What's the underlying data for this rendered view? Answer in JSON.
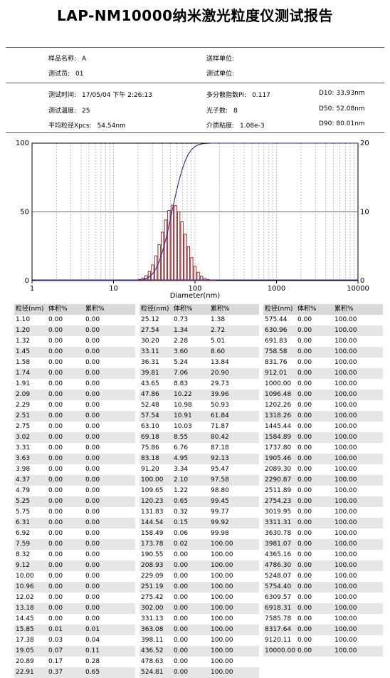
{
  "title": "LAP-NM10000纳米激光粒度仪测试报告",
  "info": {
    "sample_name_label": "样品名称:",
    "sample_name": "A",
    "tester_label": "测试员:",
    "tester": "01",
    "sender_label": "送样单位:",
    "sender": "",
    "test_unit_label": "测试单位:",
    "test_unit": "",
    "test_time_label": "测试时间:",
    "test_time": "17/05/04 下午 2:26:13",
    "pdi_label": "多分散指数PI:",
    "pdi": "0.117",
    "d10_label": "D10:",
    "d10": "33.93nm",
    "temp_label": "测试温度:",
    "temp": "25",
    "photon_label": "光子数:",
    "photon": "8",
    "d50_label": "D50:",
    "d50": "52.08nm",
    "avg_label": "平均粒径Xpcs:",
    "avg": "54.54nm",
    "visc_label": "介质粘度:",
    "visc": "1.08e-3",
    "d90_label": "D90:",
    "d90": "80.01nm"
  },
  "chart_data": {
    "type": "bar",
    "xlabel": "Diameter(nm)",
    "xscale": "log",
    "xlim": [
      1,
      10000
    ],
    "xticks": [
      "1",
      "10",
      "100",
      "1000",
      "10000"
    ],
    "ylim_left": [
      0,
      100
    ],
    "yticks_left": [
      "0",
      "50",
      "100"
    ],
    "ylim_right": [
      0,
      20
    ],
    "yticks_right": [
      "0",
      "10",
      "20"
    ],
    "reference_line_left": 50,
    "colors": {
      "bars": "#8b1a1a",
      "cumulative": "#2a2a8a",
      "reference": "#2e8b2e",
      "baseline": "#2a2a8a",
      "grid": "#999999"
    },
    "bars": {
      "x": [
        15.85,
        17.38,
        19.05,
        20.89,
        22.91,
        25.12,
        27.54,
        30.2,
        33.11,
        36.31,
        39.81,
        43.65,
        47.86,
        52.48,
        57.54,
        63.1,
        69.18,
        75.86,
        83.18,
        91.2,
        100.0,
        109.65,
        120.23,
        131.83,
        144.54,
        158.49,
        173.78
      ],
      "volume": [
        0.01,
        0.03,
        0.07,
        0.17,
        0.37,
        0.73,
        1.34,
        2.28,
        3.6,
        5.24,
        7.06,
        8.83,
        10.22,
        10.98,
        10.91,
        10.03,
        8.55,
        6.76,
        4.95,
        3.34,
        2.1,
        1.22,
        0.65,
        0.32,
        0.15,
        0.06,
        0.02
      ]
    },
    "cumulative": {
      "x": [
        1.1,
        15.85,
        17.38,
        19.05,
        20.89,
        22.91,
        25.12,
        27.54,
        30.2,
        33.11,
        36.31,
        39.81,
        43.65,
        47.86,
        52.48,
        57.54,
        63.1,
        69.18,
        75.86,
        83.18,
        91.2,
        100.0,
        109.65,
        120.23,
        131.83,
        144.54,
        158.49,
        173.78,
        190.55,
        10000.0
      ],
      "values": [
        0.0,
        0.01,
        0.04,
        0.11,
        0.28,
        0.65,
        1.38,
        2.72,
        5.01,
        8.6,
        13.84,
        20.9,
        29.73,
        39.96,
        50.93,
        61.84,
        71.87,
        80.42,
        87.18,
        92.13,
        95.47,
        97.58,
        98.8,
        99.45,
        99.77,
        99.92,
        99.98,
        100.0,
        100.0,
        100.0
      ]
    }
  },
  "table": {
    "headers": [
      "粒径(nm)",
      "体积%",
      "累积%"
    ],
    "columns": [
      [
        [
          "1.10",
          "0.00",
          "0.00"
        ],
        [
          "1.20",
          "0.00",
          "0.00"
        ],
        [
          "1.32",
          "0.00",
          "0.00"
        ],
        [
          "1.45",
          "0.00",
          "0.00"
        ],
        [
          "1.58",
          "0.00",
          "0.00"
        ],
        [
          "1.74",
          "0.00",
          "0.00"
        ],
        [
          "1.91",
          "0.00",
          "0.00"
        ],
        [
          "2.09",
          "0.00",
          "0.00"
        ],
        [
          "2.29",
          "0.00",
          "0.00"
        ],
        [
          "2.51",
          "0.00",
          "0.00"
        ],
        [
          "2.75",
          "0.00",
          "0.00"
        ],
        [
          "3.02",
          "0.00",
          "0.00"
        ],
        [
          "3.31",
          "0.00",
          "0.00"
        ],
        [
          "3.63",
          "0.00",
          "0.00"
        ],
        [
          "3.98",
          "0.00",
          "0.00"
        ],
        [
          "4.37",
          "0.00",
          "0.00"
        ],
        [
          "4.79",
          "0.00",
          "0.00"
        ],
        [
          "5.25",
          "0.00",
          "0.00"
        ],
        [
          "5.75",
          "0.00",
          "0.00"
        ],
        [
          "6.31",
          "0.00",
          "0.00"
        ],
        [
          "6.92",
          "0.00",
          "0.00"
        ],
        [
          "7.59",
          "0.00",
          "0.00"
        ],
        [
          "8.32",
          "0.00",
          "0.00"
        ],
        [
          "9.12",
          "0.00",
          "0.00"
        ],
        [
          "10.00",
          "0.00",
          "0.00"
        ],
        [
          "10.96",
          "0.00",
          "0.00"
        ],
        [
          "12.02",
          "0.00",
          "0.00"
        ],
        [
          "13.18",
          "0.00",
          "0.00"
        ],
        [
          "14.45",
          "0.00",
          "0.00"
        ],
        [
          "15.85",
          "0.01",
          "0.01"
        ],
        [
          "17.38",
          "0.03",
          "0.04"
        ],
        [
          "19.05",
          "0.07",
          "0.11"
        ],
        [
          "20.89",
          "0.17",
          "0.28"
        ],
        [
          "22.91",
          "0.37",
          "0.65"
        ]
      ],
      [
        [
          "25.12",
          "0.73",
          "1.38"
        ],
        [
          "27.54",
          "1.34",
          "2.72"
        ],
        [
          "30.20",
          "2.28",
          "5.01"
        ],
        [
          "33.11",
          "3.60",
          "8.60"
        ],
        [
          "36.31",
          "5.24",
          "13.84"
        ],
        [
          "39.81",
          "7.06",
          "20.90"
        ],
        [
          "43.65",
          "8.83",
          "29.73"
        ],
        [
          "47.86",
          "10.22",
          "39.96"
        ],
        [
          "52.48",
          "10.98",
          "50.93"
        ],
        [
          "57.54",
          "10.91",
          "61.84"
        ],
        [
          "63.10",
          "10.03",
          "71.87"
        ],
        [
          "69.18",
          "8.55",
          "80.42"
        ],
        [
          "75.86",
          "6.76",
          "87.18"
        ],
        [
          "83.18",
          "4.95",
          "92.13"
        ],
        [
          "91.20",
          "3.34",
          "95.47"
        ],
        [
          "100.00",
          "2.10",
          "97.58"
        ],
        [
          "109.65",
          "1.22",
          "98.80"
        ],
        [
          "120.23",
          "0.65",
          "99.45"
        ],
        [
          "131.83",
          "0.32",
          "99.77"
        ],
        [
          "144.54",
          "0.15",
          "99.92"
        ],
        [
          "158.49",
          "0.06",
          "99.98"
        ],
        [
          "173.78",
          "0.02",
          "100.00"
        ],
        [
          "190.55",
          "0.00",
          "100.00"
        ],
        [
          "208.93",
          "0.00",
          "100.00"
        ],
        [
          "229.09",
          "0.00",
          "100.00"
        ],
        [
          "251.19",
          "0.00",
          "100.00"
        ],
        [
          "275.42",
          "0.00",
          "100.00"
        ],
        [
          "302.00",
          "0.00",
          "100.00"
        ],
        [
          "331.13",
          "0.00",
          "100.00"
        ],
        [
          "363.08",
          "0.00",
          "100.00"
        ],
        [
          "398.11",
          "0.00",
          "100.00"
        ],
        [
          "436.52",
          "0.00",
          "100.00"
        ],
        [
          "478.63",
          "0.00",
          "100.00"
        ],
        [
          "524.81",
          "0.00",
          "100.00"
        ]
      ],
      [
        [
          "575.44",
          "0.00",
          "100.00"
        ],
        [
          "630.96",
          "0.00",
          "100.00"
        ],
        [
          "691.83",
          "0.00",
          "100.00"
        ],
        [
          "758.58",
          "0.00",
          "100.00"
        ],
        [
          "831.76",
          "0.00",
          "100.00"
        ],
        [
          "912.01",
          "0.00",
          "100.00"
        ],
        [
          "1000.00",
          "0.00",
          "100.00"
        ],
        [
          "1096.48",
          "0.00",
          "100.00"
        ],
        [
          "1202.26",
          "0.00",
          "100.00"
        ],
        [
          "1318.26",
          "0.00",
          "100.00"
        ],
        [
          "1445.44",
          "0.00",
          "100.00"
        ],
        [
          "1584.89",
          "0.00",
          "100.00"
        ],
        [
          "1737.80",
          "0.00",
          "100.00"
        ],
        [
          "1905.46",
          "0.00",
          "100.00"
        ],
        [
          "2089.30",
          "0.00",
          "100.00"
        ],
        [
          "2290.87",
          "0.00",
          "100.00"
        ],
        [
          "2511.89",
          "0.00",
          "100.00"
        ],
        [
          "2754.23",
          "0.00",
          "100.00"
        ],
        [
          "3019.95",
          "0.00",
          "100.00"
        ],
        [
          "3311.31",
          "0.00",
          "100.00"
        ],
        [
          "3630.78",
          "0.00",
          "100.00"
        ],
        [
          "3981.07",
          "0.00",
          "100.00"
        ],
        [
          "4365.16",
          "0.00",
          "100.00"
        ],
        [
          "4786.30",
          "0.00",
          "100.00"
        ],
        [
          "5248.07",
          "0.00",
          "100.00"
        ],
        [
          "5754.40",
          "0.00",
          "100.00"
        ],
        [
          "6309.57",
          "0.00",
          "100.00"
        ],
        [
          "6918.31",
          "0.00",
          "100.00"
        ],
        [
          "7585.78",
          "0.00",
          "100.00"
        ],
        [
          "8317.64",
          "0.00",
          "100.00"
        ],
        [
          "9120.11",
          "0.00",
          "100.00"
        ],
        [
          "10000.00",
          "0.00",
          "100.00"
        ]
      ]
    ]
  }
}
